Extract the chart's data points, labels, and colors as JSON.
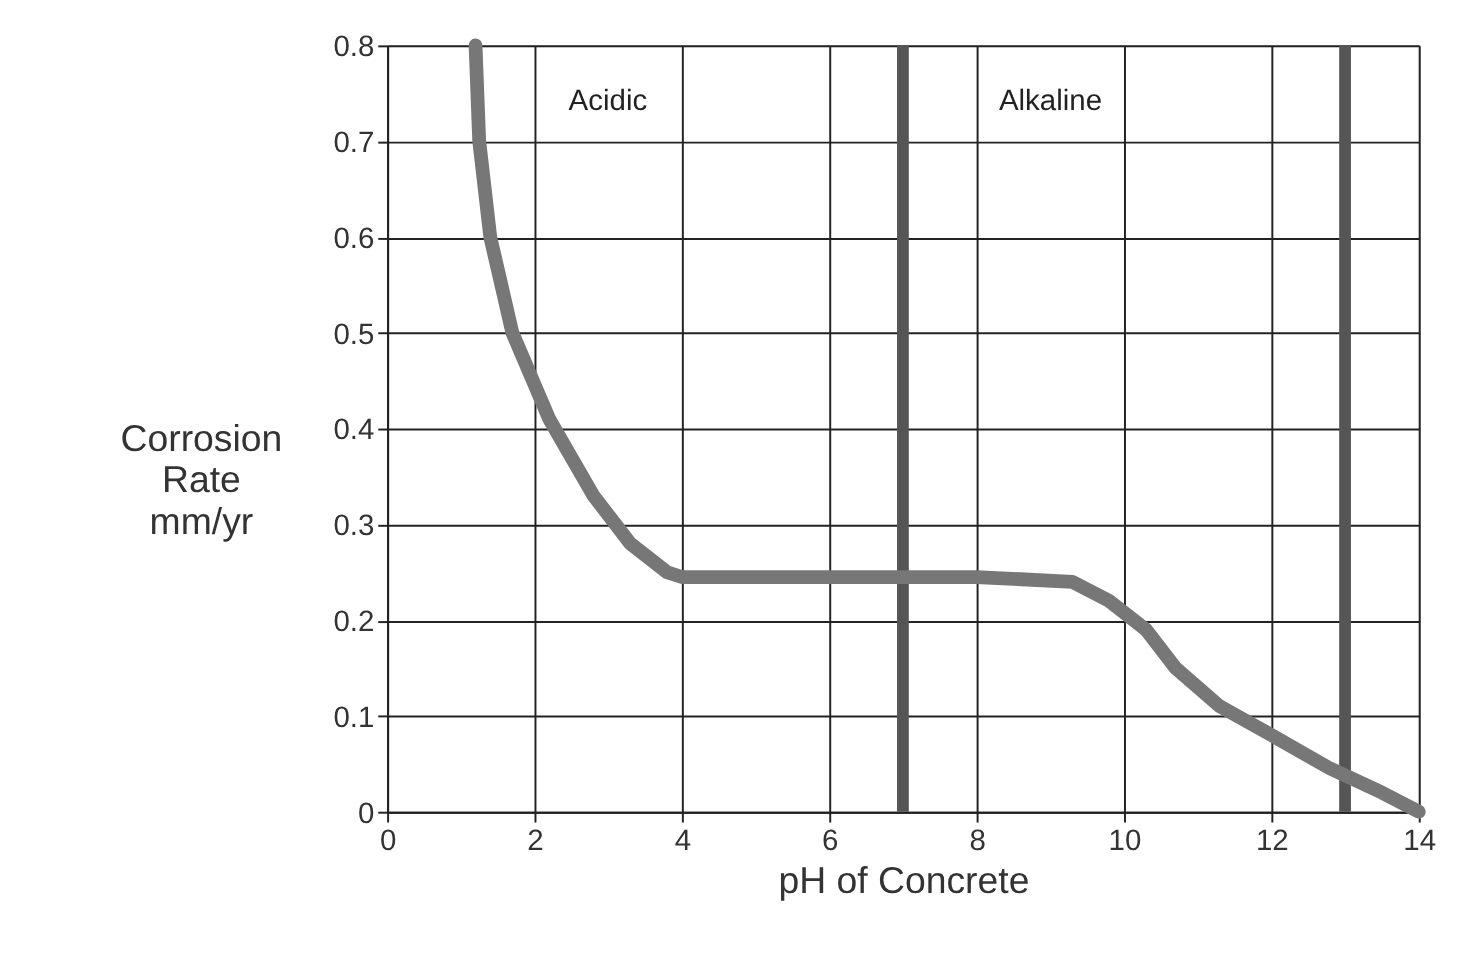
{
  "chart_data": {
    "type": "line",
    "xlabel": "pH of Concrete",
    "ylabel": "Corrosion Rate mm/yr",
    "xlim": [
      0,
      14
    ],
    "xticks": [
      0,
      2,
      4,
      6,
      8,
      10,
      12,
      14
    ],
    "ylim": [
      0,
      0.8
    ],
    "yticks": [
      0,
      0.1,
      0.2,
      0.3,
      0.4,
      0.5,
      0.6,
      0.7,
      0.8
    ],
    "grid": true,
    "line_style": "solid",
    "series": [
      {
        "color": "#777777",
        "x": [
          1.2,
          1.25,
          1.4,
          1.7,
          2.2,
          2.8,
          3.3,
          3.8,
          4,
          6,
          8,
          9.3,
          9.8,
          10.3,
          10.7,
          11.3,
          12,
          12.8,
          13.5,
          14
        ],
        "values": [
          0.8,
          0.7,
          0.6,
          0.5,
          0.41,
          0.33,
          0.28,
          0.25,
          0.245,
          0.245,
          0.245,
          0.24,
          0.22,
          0.19,
          0.15,
          0.11,
          0.08,
          0.045,
          0.02,
          0
        ]
      }
    ],
    "ref_lines": [
      {
        "axis": "x",
        "value": 7,
        "color": "#555555"
      },
      {
        "axis": "x",
        "value": 13,
        "color": "#555555"
      }
    ],
    "annotations": [
      "Acidic",
      "Alkaline"
    ]
  }
}
